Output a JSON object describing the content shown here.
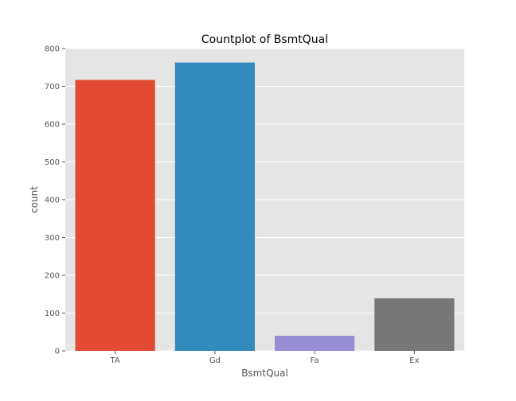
{
  "chart_data": {
    "type": "bar",
    "title": "Countplot of BsmtQual",
    "xlabel": "BsmtQual",
    "ylabel": "count",
    "categories": [
      "TA",
      "Gd",
      "Fa",
      "Ex"
    ],
    "values": [
      717,
      763,
      40,
      139
    ],
    "colors": [
      "#e24a33",
      "#348abd",
      "#988ed5",
      "#777777"
    ],
    "ylim": [
      0,
      800
    ],
    "yticks": [
      0,
      100,
      200,
      300,
      400,
      500,
      600,
      700,
      800
    ],
    "grid": true,
    "background": "#e5e5e5",
    "gridColor": "#ffffff",
    "legend": "none"
  }
}
